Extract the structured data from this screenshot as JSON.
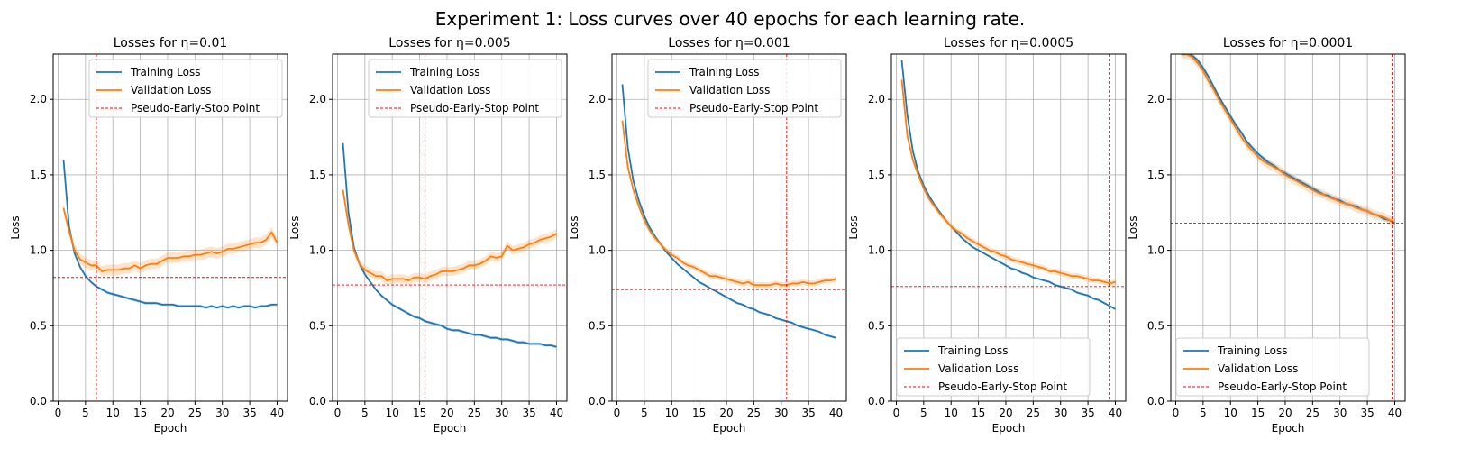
{
  "figure": {
    "title": "Experiment 1: Loss curves over 40 epochs for each learning rate."
  },
  "colors": {
    "training": "#1f77b4",
    "validation": "#ff7f0e",
    "early_stop": "#ff0000",
    "grid": "#b0b0b0"
  },
  "chart_data": [
    {
      "type": "line",
      "title": "Losses for η=0.01",
      "xlabel": "Epoch",
      "ylabel": "Loss",
      "xlim": [
        -0.9,
        41.9
      ],
      "ylim": [
        0.0,
        2.3
      ],
      "xticks": [
        0,
        5,
        10,
        15,
        20,
        25,
        30,
        35,
        40
      ],
      "yticks": [
        0.0,
        0.5,
        1.0,
        1.5,
        2.0
      ],
      "grid": true,
      "legend": "top-right",
      "x": [
        1,
        2,
        3,
        4,
        5,
        6,
        7,
        8,
        9,
        10,
        11,
        12,
        13,
        14,
        15,
        16,
        17,
        18,
        19,
        20,
        21,
        22,
        23,
        24,
        25,
        26,
        27,
        28,
        29,
        30,
        31,
        32,
        33,
        34,
        35,
        36,
        37,
        38,
        39,
        40
      ],
      "series": [
        {
          "name": "Training Loss",
          "band": 0.01,
          "values": [
            1.6,
            1.16,
            0.98,
            0.89,
            0.83,
            0.79,
            0.76,
            0.74,
            0.72,
            0.71,
            0.7,
            0.69,
            0.68,
            0.67,
            0.66,
            0.65,
            0.65,
            0.65,
            0.64,
            0.64,
            0.64,
            0.63,
            0.63,
            0.63,
            0.63,
            0.63,
            0.62,
            0.63,
            0.62,
            0.63,
            0.62,
            0.63,
            0.62,
            0.63,
            0.63,
            0.62,
            0.63,
            0.63,
            0.64,
            0.64
          ]
        },
        {
          "name": "Validation Loss",
          "band": 0.035,
          "values": [
            1.28,
            1.13,
            1.0,
            0.94,
            0.92,
            0.9,
            0.9,
            0.86,
            0.87,
            0.87,
            0.87,
            0.88,
            0.88,
            0.9,
            0.88,
            0.9,
            0.91,
            0.91,
            0.93,
            0.95,
            0.95,
            0.95,
            0.96,
            0.96,
            0.97,
            0.97,
            0.98,
            0.99,
            0.98,
            0.99,
            1.01,
            1.01,
            1.02,
            1.03,
            1.04,
            1.05,
            1.05,
            1.07,
            1.12,
            1.05
          ]
        }
      ],
      "early_stop": {
        "label": "Pseudo-Early-Stop Point",
        "epoch": 7,
        "loss": 0.82
      }
    },
    {
      "type": "line",
      "title": "Losses for η=0.005",
      "xlabel": "Epoch",
      "ylabel": "Loss",
      "xlim": [
        -0.9,
        41.9
      ],
      "ylim": [
        0.0,
        2.3
      ],
      "xticks": [
        0,
        5,
        10,
        15,
        20,
        25,
        30,
        35,
        40
      ],
      "yticks": [
        0.0,
        0.5,
        1.0,
        1.5,
        2.0
      ],
      "grid": true,
      "legend": "top-right",
      "x": [
        1,
        2,
        3,
        4,
        5,
        6,
        7,
        8,
        9,
        10,
        11,
        12,
        13,
        14,
        15,
        16,
        17,
        18,
        19,
        20,
        21,
        22,
        23,
        24,
        25,
        26,
        27,
        28,
        29,
        30,
        31,
        32,
        33,
        34,
        35,
        36,
        37,
        38,
        39,
        40
      ],
      "series": [
        {
          "name": "Training Loss",
          "band": 0.01,
          "values": [
            1.71,
            1.25,
            1.02,
            0.91,
            0.84,
            0.79,
            0.74,
            0.7,
            0.67,
            0.64,
            0.62,
            0.6,
            0.58,
            0.56,
            0.55,
            0.53,
            0.52,
            0.51,
            0.5,
            0.48,
            0.47,
            0.47,
            0.46,
            0.45,
            0.44,
            0.44,
            0.43,
            0.42,
            0.42,
            0.41,
            0.41,
            0.4,
            0.39,
            0.39,
            0.38,
            0.38,
            0.38,
            0.37,
            0.37,
            0.36
          ]
        },
        {
          "name": "Validation Loss",
          "band": 0.03,
          "values": [
            1.4,
            1.17,
            1.0,
            0.91,
            0.87,
            0.85,
            0.83,
            0.83,
            0.8,
            0.81,
            0.81,
            0.81,
            0.8,
            0.82,
            0.82,
            0.81,
            0.83,
            0.84,
            0.86,
            0.86,
            0.86,
            0.87,
            0.88,
            0.9,
            0.9,
            0.91,
            0.93,
            0.96,
            0.95,
            0.96,
            1.03,
            1.0,
            1.01,
            1.02,
            1.04,
            1.05,
            1.07,
            1.08,
            1.09,
            1.11
          ]
        }
      ],
      "early_stop": {
        "label": "Pseudo-Early-Stop Point",
        "epoch": 16,
        "loss": 0.77
      }
    },
    {
      "type": "line",
      "title": "Losses for η=0.001",
      "xlabel": "Epoch",
      "ylabel": "Loss",
      "xlim": [
        -0.9,
        41.9
      ],
      "ylim": [
        0.0,
        2.3
      ],
      "xticks": [
        0,
        5,
        10,
        15,
        20,
        25,
        30,
        35,
        40
      ],
      "yticks": [
        0.0,
        0.5,
        1.0,
        1.5,
        2.0
      ],
      "grid": true,
      "legend": "top-right",
      "x": [
        1,
        2,
        3,
        4,
        5,
        6,
        7,
        8,
        9,
        10,
        11,
        12,
        13,
        14,
        15,
        16,
        17,
        18,
        19,
        20,
        21,
        22,
        23,
        24,
        25,
        26,
        27,
        28,
        29,
        30,
        31,
        32,
        33,
        34,
        35,
        36,
        37,
        38,
        39,
        40
      ],
      "series": [
        {
          "name": "Training Loss",
          "band": 0.008,
          "values": [
            2.1,
            1.68,
            1.46,
            1.33,
            1.23,
            1.15,
            1.09,
            1.04,
            0.99,
            0.95,
            0.91,
            0.88,
            0.85,
            0.82,
            0.79,
            0.77,
            0.75,
            0.73,
            0.71,
            0.69,
            0.67,
            0.65,
            0.64,
            0.62,
            0.61,
            0.59,
            0.58,
            0.57,
            0.55,
            0.54,
            0.53,
            0.52,
            0.5,
            0.49,
            0.48,
            0.47,
            0.46,
            0.44,
            0.43,
            0.42
          ]
        },
        {
          "name": "Validation Loss",
          "band": 0.02,
          "values": [
            1.86,
            1.55,
            1.4,
            1.29,
            1.2,
            1.13,
            1.08,
            1.04,
            1.0,
            0.97,
            0.95,
            0.92,
            0.9,
            0.89,
            0.87,
            0.85,
            0.83,
            0.83,
            0.82,
            0.81,
            0.8,
            0.79,
            0.78,
            0.79,
            0.77,
            0.77,
            0.77,
            0.77,
            0.78,
            0.77,
            0.77,
            0.78,
            0.78,
            0.79,
            0.78,
            0.78,
            0.79,
            0.8,
            0.8,
            0.81
          ]
        }
      ],
      "early_stop": {
        "label": "Pseudo-Early-Stop Point",
        "epoch": 31,
        "loss": 0.74
      }
    },
    {
      "type": "line",
      "title": "Losses for η=0.0005",
      "xlabel": "Epoch",
      "ylabel": "Loss",
      "xlim": [
        -0.9,
        41.9
      ],
      "ylim": [
        0.0,
        2.3
      ],
      "xticks": [
        0,
        5,
        10,
        15,
        20,
        25,
        30,
        35,
        40
      ],
      "yticks": [
        0.0,
        0.5,
        1.0,
        1.5,
        2.0
      ],
      "grid": true,
      "legend": "bottom-left",
      "x": [
        1,
        2,
        3,
        4,
        5,
        6,
        7,
        8,
        9,
        10,
        11,
        12,
        13,
        14,
        15,
        16,
        17,
        18,
        19,
        20,
        21,
        22,
        23,
        24,
        25,
        26,
        27,
        28,
        29,
        30,
        31,
        32,
        33,
        34,
        35,
        36,
        37,
        38,
        39,
        40
      ],
      "series": [
        {
          "name": "Training Loss",
          "band": 0.008,
          "values": [
            2.26,
            1.9,
            1.66,
            1.52,
            1.43,
            1.36,
            1.3,
            1.25,
            1.2,
            1.16,
            1.12,
            1.08,
            1.05,
            1.02,
            1.0,
            0.98,
            0.96,
            0.94,
            0.92,
            0.9,
            0.88,
            0.87,
            0.85,
            0.84,
            0.82,
            0.81,
            0.8,
            0.79,
            0.77,
            0.76,
            0.75,
            0.74,
            0.72,
            0.71,
            0.7,
            0.68,
            0.67,
            0.65,
            0.63,
            0.61
          ]
        },
        {
          "name": "Validation Loss",
          "band": 0.02,
          "values": [
            2.13,
            1.76,
            1.6,
            1.5,
            1.41,
            1.34,
            1.29,
            1.24,
            1.2,
            1.16,
            1.13,
            1.11,
            1.08,
            1.06,
            1.04,
            1.02,
            1.0,
            0.99,
            0.97,
            0.96,
            0.94,
            0.93,
            0.92,
            0.91,
            0.9,
            0.89,
            0.88,
            0.86,
            0.86,
            0.85,
            0.84,
            0.83,
            0.83,
            0.82,
            0.81,
            0.8,
            0.8,
            0.79,
            0.78,
            0.79
          ]
        }
      ],
      "early_stop": {
        "label": "Pseudo-Early-Stop Point",
        "epoch": 39,
        "loss": 0.76
      }
    },
    {
      "type": "line",
      "title": "Losses for η=0.0001",
      "xlabel": "Epoch",
      "ylabel": "Loss",
      "xlim": [
        -0.9,
        41.9
      ],
      "ylim": [
        0.0,
        2.3
      ],
      "xticks": [
        0,
        5,
        10,
        15,
        20,
        25,
        30,
        35,
        40
      ],
      "yticks": [
        0.0,
        0.5,
        1.0,
        1.5,
        2.0
      ],
      "grid": true,
      "legend": "bottom-left",
      "x": [
        1,
        2,
        3,
        4,
        5,
        6,
        7,
        8,
        9,
        10,
        11,
        12,
        13,
        14,
        15,
        16,
        17,
        18,
        19,
        20,
        21,
        22,
        23,
        24,
        25,
        26,
        27,
        28,
        29,
        30,
        31,
        32,
        33,
        34,
        35,
        36,
        37,
        38,
        39,
        40
      ],
      "series": [
        {
          "name": "Training Loss",
          "band": 0.015,
          "values": [
            2.3,
            2.3,
            2.29,
            2.26,
            2.21,
            2.15,
            2.08,
            2.01,
            1.95,
            1.89,
            1.83,
            1.78,
            1.72,
            1.68,
            1.64,
            1.61,
            1.58,
            1.56,
            1.53,
            1.51,
            1.49,
            1.47,
            1.45,
            1.43,
            1.41,
            1.39,
            1.37,
            1.36,
            1.34,
            1.33,
            1.31,
            1.3,
            1.29,
            1.27,
            1.26,
            1.24,
            1.23,
            1.21,
            1.2,
            1.18
          ]
        },
        {
          "name": "Validation Loss",
          "band": 0.03,
          "values": [
            2.3,
            2.3,
            2.28,
            2.24,
            2.19,
            2.12,
            2.06,
            1.99,
            1.93,
            1.87,
            1.81,
            1.75,
            1.7,
            1.66,
            1.62,
            1.59,
            1.57,
            1.55,
            1.53,
            1.5,
            1.48,
            1.46,
            1.44,
            1.42,
            1.4,
            1.38,
            1.37,
            1.35,
            1.34,
            1.32,
            1.31,
            1.3,
            1.28,
            1.27,
            1.26,
            1.24,
            1.23,
            1.22,
            1.2,
            1.19
          ]
        }
      ],
      "early_stop": {
        "label": "Pseudo-Early-Stop Point",
        "epoch": 39.5,
        "loss": 1.18
      }
    }
  ]
}
